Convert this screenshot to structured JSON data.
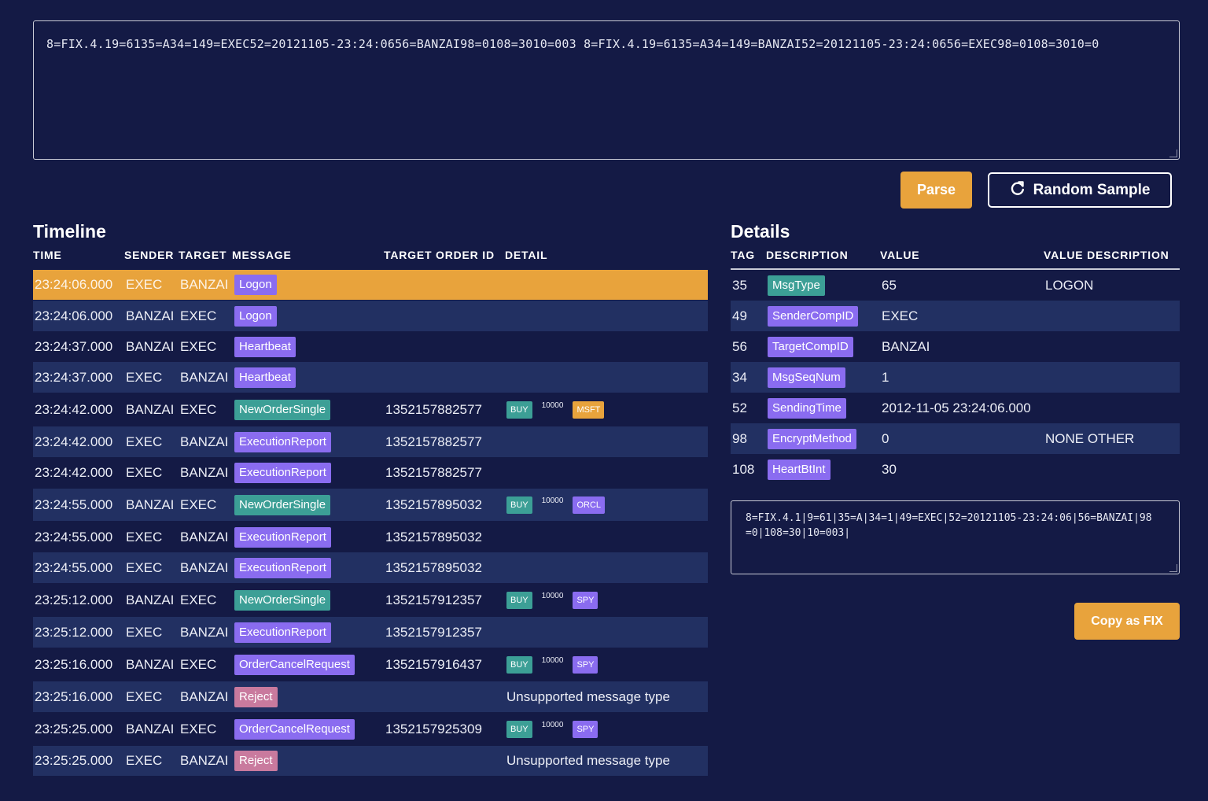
{
  "input": {
    "value": "8=FIX.4.19=6135=A34=149=EXEC52=20121105-23:24:0656=BANZAI98=0108=3010=003  8=FIX.4.19=6135=A34=149=BANZAI52=20121105-23:24:0656=EXEC98=0108=3010=0"
  },
  "buttons": {
    "parse": "Parse",
    "random": "Random Sample",
    "random_icon": "refresh-icon",
    "copy": "Copy as FIX"
  },
  "timeline": {
    "title": "Timeline",
    "columns": [
      "TIME",
      "SENDER",
      "TARGET",
      "MESSAGE",
      "TARGET ORDER ID",
      "DETAIL"
    ],
    "rows": [
      {
        "time": "23:24:06.000",
        "sender": "EXEC",
        "target": "BANZAI",
        "message": "Logon",
        "msg_color": "purple",
        "order_id": "",
        "side": "",
        "qty": "",
        "symbol": "",
        "detail_text": ""
      },
      {
        "time": "23:24:06.000",
        "sender": "BANZAI",
        "target": "EXEC",
        "message": "Logon",
        "msg_color": "purple",
        "order_id": "",
        "side": "",
        "qty": "",
        "symbol": "",
        "detail_text": ""
      },
      {
        "time": "23:24:37.000",
        "sender": "BANZAI",
        "target": "EXEC",
        "message": "Heartbeat",
        "msg_color": "purple",
        "order_id": "",
        "side": "",
        "qty": "",
        "symbol": "",
        "detail_text": ""
      },
      {
        "time": "23:24:37.000",
        "sender": "EXEC",
        "target": "BANZAI",
        "message": "Heartbeat",
        "msg_color": "purple",
        "order_id": "",
        "side": "",
        "qty": "",
        "symbol": "",
        "detail_text": ""
      },
      {
        "time": "23:24:42.000",
        "sender": "BANZAI",
        "target": "EXEC",
        "message": "NewOrderSingle",
        "msg_color": "teal",
        "order_id": "1352157882577",
        "side": "BUY",
        "qty": "10000",
        "symbol": "MSFT",
        "symbol_color": "orange",
        "detail_text": ""
      },
      {
        "time": "23:24:42.000",
        "sender": "EXEC",
        "target": "BANZAI",
        "message": "ExecutionReport",
        "msg_color": "purple",
        "order_id": "1352157882577",
        "side": "",
        "qty": "",
        "symbol": "",
        "detail_text": ""
      },
      {
        "time": "23:24:42.000",
        "sender": "EXEC",
        "target": "BANZAI",
        "message": "ExecutionReport",
        "msg_color": "purple",
        "order_id": "1352157882577",
        "side": "",
        "qty": "",
        "symbol": "",
        "detail_text": ""
      },
      {
        "time": "23:24:55.000",
        "sender": "BANZAI",
        "target": "EXEC",
        "message": "NewOrderSingle",
        "msg_color": "teal",
        "order_id": "1352157895032",
        "side": "BUY",
        "qty": "10000",
        "symbol": "ORCL",
        "symbol_color": "purple",
        "detail_text": ""
      },
      {
        "time": "23:24:55.000",
        "sender": "EXEC",
        "target": "BANZAI",
        "message": "ExecutionReport",
        "msg_color": "purple",
        "order_id": "1352157895032",
        "side": "",
        "qty": "",
        "symbol": "",
        "detail_text": ""
      },
      {
        "time": "23:24:55.000",
        "sender": "EXEC",
        "target": "BANZAI",
        "message": "ExecutionReport",
        "msg_color": "purple",
        "order_id": "1352157895032",
        "side": "",
        "qty": "",
        "symbol": "",
        "detail_text": ""
      },
      {
        "time": "23:25:12.000",
        "sender": "BANZAI",
        "target": "EXEC",
        "message": "NewOrderSingle",
        "msg_color": "teal",
        "order_id": "1352157912357",
        "side": "BUY",
        "qty": "10000",
        "symbol": "SPY",
        "symbol_color": "purple",
        "detail_text": ""
      },
      {
        "time": "23:25:12.000",
        "sender": "EXEC",
        "target": "BANZAI",
        "message": "ExecutionReport",
        "msg_color": "purple",
        "order_id": "1352157912357",
        "side": "",
        "qty": "",
        "symbol": "",
        "detail_text": ""
      },
      {
        "time": "23:25:16.000",
        "sender": "BANZAI",
        "target": "EXEC",
        "message": "OrderCancelRequest",
        "msg_color": "purple",
        "order_id": "1352157916437",
        "side": "BUY",
        "qty": "10000",
        "symbol": "SPY",
        "symbol_color": "purple",
        "detail_text": ""
      },
      {
        "time": "23:25:16.000",
        "sender": "EXEC",
        "target": "BANZAI",
        "message": "Reject",
        "msg_color": "pink",
        "order_id": "",
        "side": "",
        "qty": "",
        "symbol": "",
        "detail_text": "Unsupported message type"
      },
      {
        "time": "23:25:25.000",
        "sender": "BANZAI",
        "target": "EXEC",
        "message": "OrderCancelRequest",
        "msg_color": "purple",
        "order_id": "1352157925309",
        "side": "BUY",
        "qty": "10000",
        "symbol": "SPY",
        "symbol_color": "purple",
        "detail_text": ""
      },
      {
        "time": "23:25:25.000",
        "sender": "EXEC",
        "target": "BANZAI",
        "message": "Reject",
        "msg_color": "pink",
        "order_id": "",
        "side": "",
        "qty": "",
        "symbol": "",
        "detail_text": "Unsupported message type"
      }
    ]
  },
  "details": {
    "title": "Details",
    "columns": [
      "TAG",
      "DESCRIPTION",
      "VALUE",
      "VALUE DESCRIPTION"
    ],
    "rows": [
      {
        "tag": "35",
        "description": "MsgType",
        "desc_color": "teal",
        "value": "65",
        "value_description": "LOGON"
      },
      {
        "tag": "49",
        "description": "SenderCompID",
        "desc_color": "purple",
        "value": "EXEC",
        "value_description": ""
      },
      {
        "tag": "56",
        "description": "TargetCompID",
        "desc_color": "purple",
        "value": "BANZAI",
        "value_description": ""
      },
      {
        "tag": "34",
        "description": "MsgSeqNum",
        "desc_color": "purple",
        "value": "1",
        "value_description": ""
      },
      {
        "tag": "52",
        "description": "SendingTime",
        "desc_color": "purple",
        "value": "2012-11-05 23:24:06.000",
        "value_description": ""
      },
      {
        "tag": "98",
        "description": "EncryptMethod",
        "desc_color": "purple",
        "value": "0",
        "value_description": "NONE OTHER"
      },
      {
        "tag": "108",
        "description": "HeartBtInt",
        "desc_color": "purple",
        "value": "30",
        "value_description": ""
      }
    ],
    "raw": "8=FIX.4.1|9=61|35=A|34=1|49=EXEC|52=20121105-23:24:06|56=BANZAI|98=0|108=30|10=003|"
  },
  "colors": {
    "background": "#141a45",
    "row_alt": "#223062",
    "selected": "#e8a33c",
    "purple": "#8a6cf0",
    "teal": "#3c9f96",
    "pink": "#c97a9e",
    "orange": "#e8a33c"
  },
  "selected_row": 0
}
